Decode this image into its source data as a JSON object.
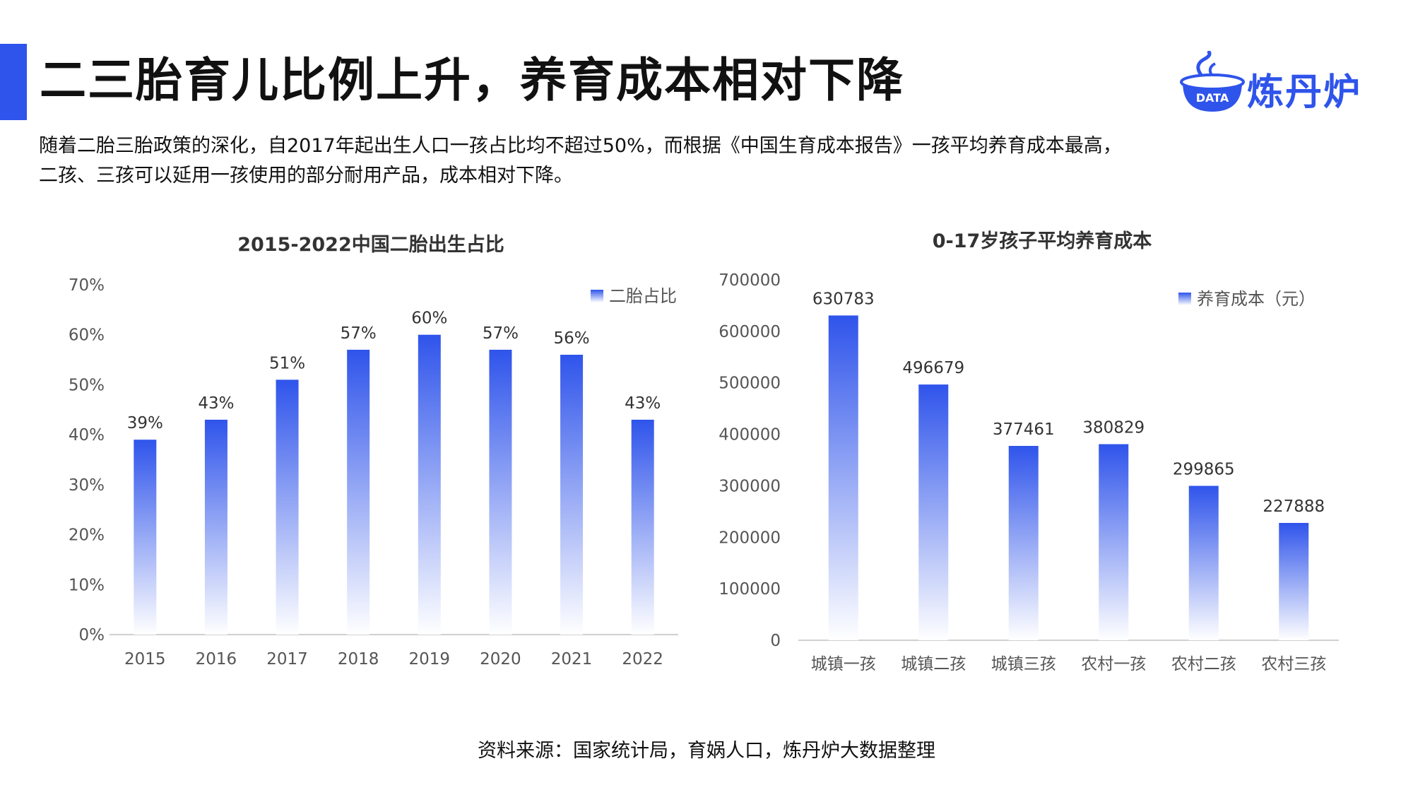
{
  "header": {
    "title": "二三胎育儿比例上升，养育成本相对下降",
    "logo_text": "炼丹炉",
    "logo_badge": "DATA"
  },
  "intro": {
    "line1": "随着二胎三胎政策的深化，自2017年起出生人口一孩占比均不超过50%，而根据《中国生育成本报告》一孩平均养育成本最高，",
    "line2": "二孩、三孩可以延用一孩使用的部分耐用产品，成本相对下降。"
  },
  "colors": {
    "accent": "#2f54eb",
    "bar_top": "#2f54eb",
    "bar_bottom": "#ffffff"
  },
  "chart_data": [
    {
      "type": "bar",
      "title": "2015-2022中国二胎出生占比",
      "categories": [
        "2015",
        "2016",
        "2017",
        "2018",
        "2019",
        "2020",
        "2021",
        "2022"
      ],
      "series": [
        {
          "name": "二胎占比",
          "values": [
            39,
            43,
            51,
            57,
            60,
            57,
            56,
            43
          ]
        }
      ],
      "data_labels": [
        "39%",
        "43%",
        "51%",
        "57%",
        "60%",
        "57%",
        "56%",
        "43%"
      ],
      "yticks": [
        "0%",
        "10%",
        "20%",
        "30%",
        "40%",
        "50%",
        "60%",
        "70%"
      ],
      "ylim": [
        0,
        70
      ],
      "legend_position": "top-right",
      "grid": false
    },
    {
      "type": "bar",
      "title": "0-17岁孩子平均养育成本",
      "categories": [
        "城镇一孩",
        "城镇二孩",
        "城镇三孩",
        "农村一孩",
        "农村二孩",
        "农村三孩"
      ],
      "series": [
        {
          "name": "养育成本（元）",
          "values": [
            630783,
            496679,
            377461,
            380829,
            299865,
            227888
          ]
        }
      ],
      "data_labels": [
        "630783",
        "496679",
        "377461",
        "380829",
        "299865",
        "227888"
      ],
      "yticks": [
        "0",
        "100000",
        "200000",
        "300000",
        "400000",
        "500000",
        "600000",
        "700000"
      ],
      "ylim": [
        0,
        700000
      ],
      "legend_position": "top-right",
      "grid": false
    }
  ],
  "footer": {
    "source": "资料来源：国家统计局，育娲人口，炼丹炉大数据整理"
  }
}
